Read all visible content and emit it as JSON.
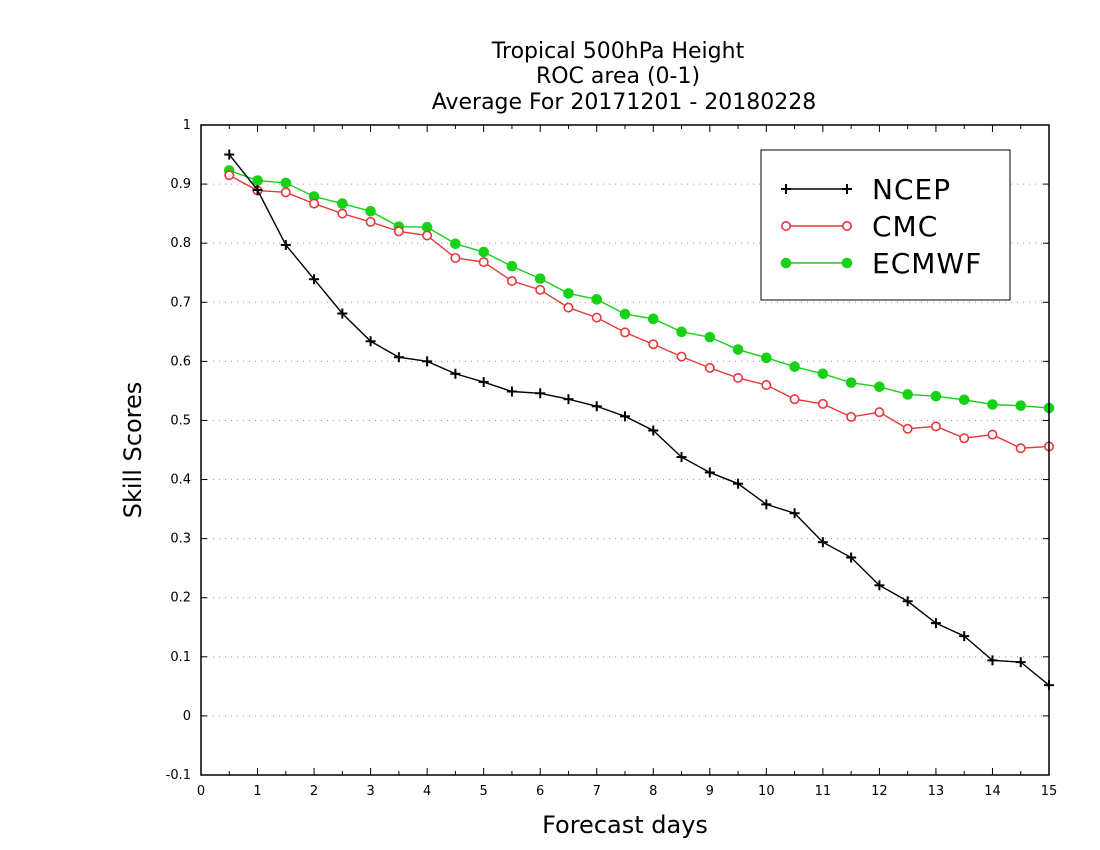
{
  "chart_data": {
    "type": "line",
    "title": [
      "Tropical 500hPa Height",
      "ROC area (0-1)",
      "Average For 20171201 - 20180228"
    ],
    "xlabel": "Forecast days",
    "ylabel": "Skill Scores",
    "xlim": [
      0,
      15
    ],
    "ylim": [
      -0.1,
      1
    ],
    "xticks": [
      "0",
      "1",
      "2",
      "3",
      "4",
      "5",
      "6",
      "7",
      "8",
      "9",
      "10",
      "11",
      "12",
      "13",
      "14",
      "15"
    ],
    "yticks": [
      "-0.1",
      "0",
      "0.1",
      "0.2",
      "0.3",
      "0.4",
      "0.5",
      "0.6",
      "0.7",
      "0.8",
      "0.9",
      "1"
    ],
    "grid": true,
    "legend_position": "top-right",
    "x": [
      0.5,
      1,
      1.5,
      2,
      2.5,
      3,
      3.5,
      4,
      4.5,
      5,
      5.5,
      6,
      6.5,
      7,
      7.5,
      8,
      8.5,
      9,
      9.5,
      10,
      10.5,
      11,
      11.5,
      12,
      12.5,
      13,
      13.5,
      14,
      14.5,
      15
    ],
    "series": [
      {
        "name": "NCEP",
        "color": "#000000",
        "marker": "plus",
        "values": [
          0.95,
          0.89,
          0.797,
          0.739,
          0.681,
          0.634,
          0.607,
          0.6,
          0.579,
          0.565,
          0.549,
          0.546,
          0.536,
          0.524,
          0.507,
          0.483,
          0.438,
          0.412,
          0.393,
          0.358,
          0.343,
          0.294,
          0.268,
          0.221,
          0.194,
          0.157,
          0.135,
          0.094,
          0.091,
          0.052
        ]
      },
      {
        "name": "CMC",
        "color": "#e8383b",
        "marker": "open-circle",
        "values": [
          0.915,
          0.889,
          0.886,
          0.867,
          0.85,
          0.836,
          0.82,
          0.813,
          0.775,
          0.768,
          0.736,
          0.721,
          0.691,
          0.674,
          0.649,
          0.629,
          0.608,
          0.589,
          0.572,
          0.56,
          0.536,
          0.528,
          0.506,
          0.514,
          0.486,
          0.49,
          0.47,
          0.476,
          0.453,
          0.456
        ]
      },
      {
        "name": "ECMWF",
        "color": "#17d117",
        "marker": "filled-circle",
        "values": [
          0.923,
          0.906,
          0.902,
          0.879,
          0.867,
          0.854,
          0.828,
          0.827,
          0.799,
          0.785,
          0.761,
          0.74,
          0.715,
          0.705,
          0.68,
          0.672,
          0.65,
          0.641,
          0.62,
          0.606,
          0.591,
          0.579,
          0.564,
          0.557,
          0.544,
          0.541,
          0.535,
          0.527,
          0.525,
          0.521
        ]
      }
    ]
  }
}
